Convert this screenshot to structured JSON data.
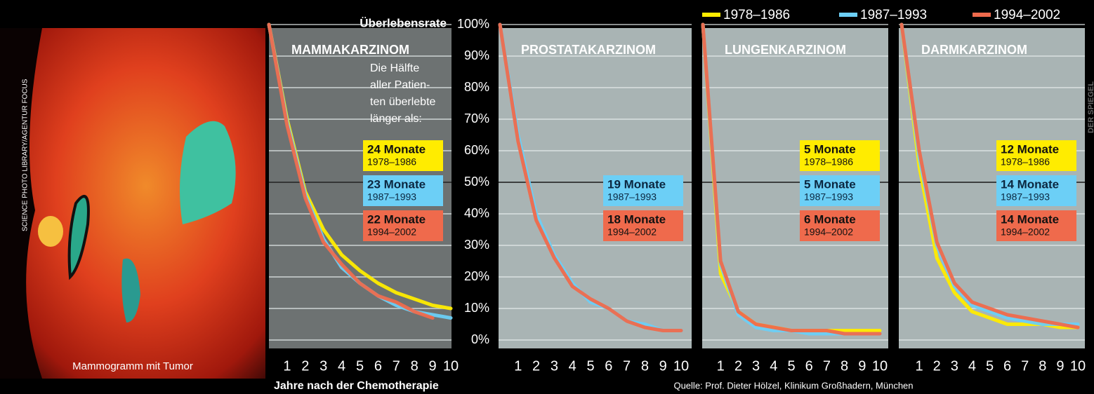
{
  "chart_data": [
    {
      "type": "line",
      "title": "MAMMAKARZINOM",
      "background": "#6d7272",
      "annotation": [
        "Die Hälfte",
        "aller Patien-",
        "ten überlebte",
        "länger als:"
      ],
      "x": [
        0,
        1,
        2,
        3,
        4,
        5,
        6,
        7,
        8,
        9,
        10
      ],
      "xlim": [
        0,
        10
      ],
      "xticks": [
        1,
        2,
        3,
        4,
        5,
        6,
        7,
        8,
        9,
        10
      ],
      "ylim": [
        0,
        100
      ],
      "ylabel": "Überlebensrate",
      "xlabel": "Jahre nach der Chemotherapie",
      "yticks": [
        {
          "value": 0,
          "label": "0%"
        },
        {
          "value": 10,
          "label": "10%"
        },
        {
          "value": 20,
          "label": "20%"
        },
        {
          "value": 30,
          "label": "30%"
        },
        {
          "value": 40,
          "label": "40%"
        },
        {
          "value": 50,
          "label": "50%"
        },
        {
          "value": 60,
          "label": "60%"
        },
        {
          "value": 70,
          "label": "70%"
        },
        {
          "value": 80,
          "label": "80%"
        },
        {
          "value": 90,
          "label": "90%"
        },
        {
          "value": 100,
          "label": "100%"
        }
      ],
      "reference_line": 50,
      "series": [
        {
          "name": "1978–1986",
          "color": "#ffec00",
          "values": [
            100,
            70,
            47,
            35,
            27,
            22,
            18,
            15,
            13,
            11,
            10
          ]
        },
        {
          "name": "1987–1993",
          "color": "#6ccff6",
          "values": [
            100,
            69,
            46,
            32,
            23,
            18,
            14,
            11,
            9,
            8,
            7
          ]
        },
        {
          "name": "1994–2002",
          "color": "#ef6a4c",
          "values": [
            100,
            68,
            45,
            31,
            24,
            18,
            14,
            12,
            9,
            7,
            null
          ]
        }
      ],
      "boxes": [
        {
          "text": "24 Monate",
          "period": "1978–1986"
        },
        {
          "text": "23 Monate",
          "period": "1987–1993"
        },
        {
          "text": "22 Monate",
          "period": "1994–2002"
        }
      ]
    },
    {
      "type": "line",
      "title": "PROSTATAKARZINOM",
      "background": "#a9b4b4",
      "x": [
        0,
        1,
        2,
        3,
        4,
        5,
        6,
        7,
        8,
        9,
        10
      ],
      "xlim": [
        0,
        10
      ],
      "xticks": [
        1,
        2,
        3,
        4,
        5,
        6,
        7,
        8,
        9,
        10
      ],
      "ylim": [
        0,
        100
      ],
      "series": [
        {
          "name": "1987–1993",
          "color": "#6ccff6",
          "values": [
            100,
            65,
            40,
            27,
            18,
            12,
            10,
            6,
            5,
            3,
            3
          ]
        },
        {
          "name": "1994–2002",
          "color": "#ef6a4c",
          "values": [
            100,
            63,
            38,
            26,
            17,
            13,
            10,
            6,
            4,
            3,
            3
          ]
        }
      ],
      "boxes": [
        {
          "text": "19 Monate",
          "period": "1987–1993"
        },
        {
          "text": "18 Monate",
          "period": "1994–2002"
        }
      ]
    },
    {
      "type": "line",
      "title": "LUNGENKARZINOM",
      "background": "#a9b4b4",
      "x": [
        0,
        1,
        2,
        3,
        4,
        5,
        6,
        7,
        8,
        9,
        10
      ],
      "xlim": [
        0,
        10
      ],
      "xticks": [
        1,
        2,
        3,
        4,
        5,
        6,
        7,
        8,
        9,
        10
      ],
      "ylim": [
        0,
        100
      ],
      "series": [
        {
          "name": "1978–1986",
          "color": "#ffec00",
          "values": [
            100,
            21,
            9,
            5,
            4,
            3,
            3,
            3,
            3,
            3,
            3
          ]
        },
        {
          "name": "1987–1993",
          "color": "#6ccff6",
          "values": [
            100,
            24,
            8,
            4,
            3,
            3,
            2,
            2,
            2,
            2,
            2
          ]
        },
        {
          "name": "1994–2002",
          "color": "#ef6a4c",
          "values": [
            100,
            25,
            9,
            5,
            4,
            3,
            3,
            3,
            2,
            2,
            2
          ]
        }
      ],
      "boxes": [
        {
          "text": "5 Monate",
          "period": "1978–1986"
        },
        {
          "text": "5 Monate",
          "period": "1987–1993"
        },
        {
          "text": "6 Monate",
          "period": "1994–2002"
        }
      ]
    },
    {
      "type": "line",
      "title": "DARMKARZINOM",
      "background": "#a9b4b4",
      "x": [
        0,
        1,
        2,
        3,
        4,
        5,
        6,
        7,
        8,
        9,
        10
      ],
      "xlim": [
        0,
        10
      ],
      "xticks": [
        1,
        2,
        3,
        4,
        5,
        6,
        7,
        8,
        9,
        10
      ],
      "ylim": [
        0,
        100
      ],
      "series": [
        {
          "name": "1978–1986",
          "color": "#ffec00",
          "values": [
            100,
            55,
            26,
            15,
            9,
            7,
            5,
            5,
            5,
            4,
            4
          ]
        },
        {
          "name": "1987–1993",
          "color": "#6ccff6",
          "values": [
            100,
            58,
            30,
            17,
            11,
            9,
            7,
            6,
            5,
            5,
            5
          ]
        },
        {
          "name": "1994–2002",
          "color": "#ef6a4c",
          "values": [
            100,
            60,
            31,
            18,
            12,
            10,
            8,
            7,
            6,
            5,
            4
          ]
        }
      ],
      "boxes": [
        {
          "text": "12 Monate",
          "period": "1978–1986"
        },
        {
          "text": "14 Monate",
          "period": "1987–1993"
        },
        {
          "text": "14 Monate",
          "period": "1994–2002"
        }
      ]
    }
  ],
  "image": {
    "caption": "Mammogramm mit Tumor",
    "credit": "SCIENCE PHOTO LIBRARY/AGENTUR FOCUS"
  },
  "source": "Quelle: Prof. Dieter Hölzel, Klinikum Großhadern, München",
  "brand": "DER SPIEGEL"
}
